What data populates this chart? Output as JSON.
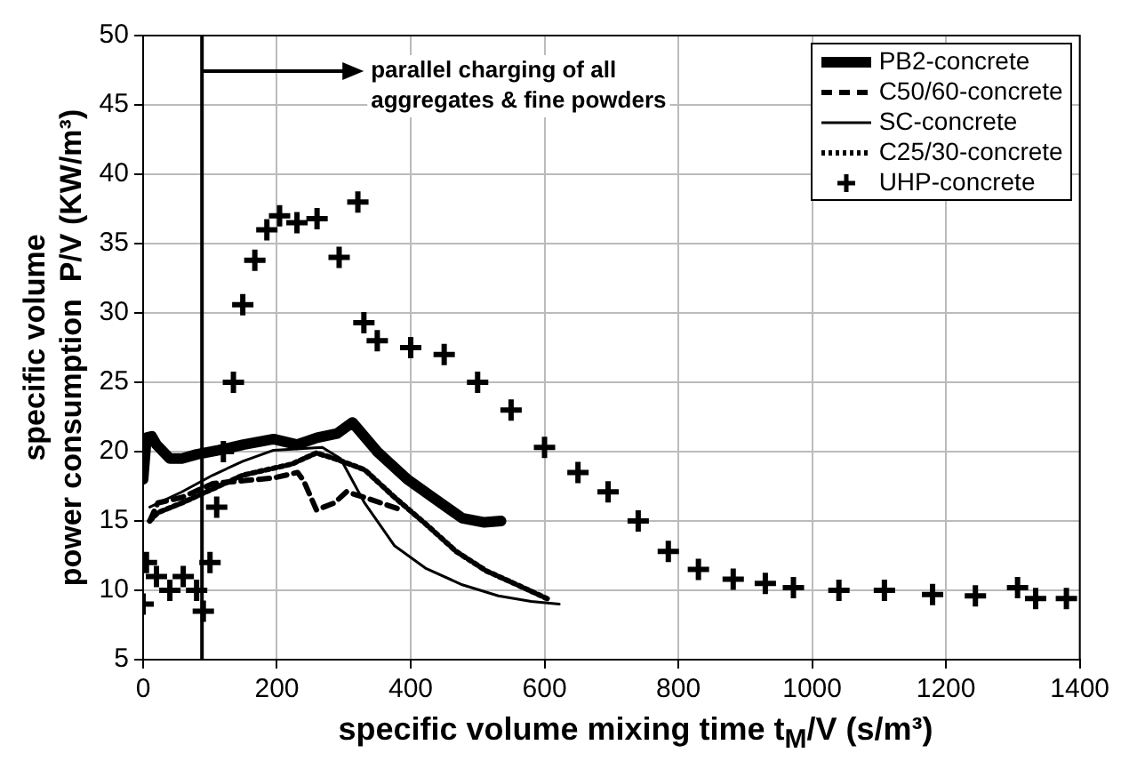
{
  "chart_data": {
    "type": "line",
    "xlabel": "specific volume mixing time t$_{M}$/V (s/m³)",
    "ylabel": "specific volume\npower consumption  P/V (KW/m³)",
    "xlim": [
      0,
      1400
    ],
    "xticks": [
      0,
      200,
      400,
      600,
      800,
      1000,
      1200,
      1400
    ],
    "ylim": [
      5,
      50
    ],
    "yticks": [
      5,
      10,
      15,
      20,
      25,
      30,
      35,
      40,
      45,
      50
    ],
    "grid": true,
    "legend": "top right",
    "ref_lines": [
      {
        "axis": "x",
        "value": 88,
        "label": "parallel charging of all aggregates & fine powders",
        "color": "#000000",
        "line_style": "solid"
      }
    ],
    "series": [
      {
        "name": "PB2-concrete",
        "color": "#000000",
        "line_style": "solid",
        "marker": "none",
        "x": [
          0,
          5,
          13,
          20,
          40,
          58,
          80,
          113,
          150,
          195,
          230,
          260,
          290,
          313,
          350,
          395,
          430,
          477,
          510,
          535
        ],
        "values": [
          18,
          21,
          21.1,
          20.5,
          19.5,
          19.5,
          19.8,
          20.1,
          20.5,
          20.9,
          20.5,
          21,
          21.3,
          22.1,
          20,
          18,
          16.8,
          15.2,
          14.9,
          15
        ]
      },
      {
        "name": "C50/60-concrete",
        "color": "#000000",
        "line_style": "dashed",
        "marker": "none",
        "x": [
          10,
          22,
          58,
          104,
          149,
          195,
          231,
          240,
          259,
          286,
          304,
          331,
          386
        ],
        "values": [
          15,
          16.3,
          16.7,
          17.7,
          17.9,
          18.1,
          18.5,
          17.9,
          15.8,
          16.3,
          17.1,
          16.7,
          15.8
        ]
      },
      {
        "name": "SC-concrete",
        "color": "#000000",
        "line_style": "solid",
        "marker": "none",
        "x": [
          10,
          58,
          104,
          149,
          195,
          268,
          295,
          331,
          376,
          422,
          477,
          531,
          580,
          622
        ],
        "values": [
          16,
          17.1,
          18.3,
          19.3,
          20.1,
          20.3,
          19.5,
          16.3,
          13.2,
          11.6,
          10.4,
          9.6,
          9.2,
          9
        ]
      },
      {
        "name": "C25/30-concrete",
        "color": "#000000",
        "line_style": "dotted",
        "marker": "none",
        "x": [
          10,
          22,
          58,
          149,
          222,
          259,
          286,
          331,
          376,
          422,
          468,
          513,
          559,
          604
        ],
        "values": [
          15,
          15.6,
          16.3,
          18.3,
          19.1,
          19.9,
          19.5,
          18.7,
          16.7,
          14.8,
          12.8,
          11.4,
          10.4,
          9.4
        ]
      },
      {
        "name": "UHP-concrete",
        "type": "scatter",
        "color": "#000000",
        "marker": "cross",
        "x": [
          0,
          5,
          20,
          40,
          60,
          80,
          90,
          100,
          110,
          120,
          135,
          149,
          167,
          185,
          204,
          230,
          260,
          293,
          321,
          330,
          350,
          400,
          450,
          500,
          550,
          600,
          650,
          695,
          740,
          785,
          830,
          882,
          930,
          972,
          1040,
          1108,
          1180,
          1244,
          1307,
          1334,
          1380
        ],
        "values": [
          9,
          12,
          11,
          10,
          11,
          10,
          8.5,
          12,
          16,
          20,
          25,
          30.6,
          33.8,
          36,
          37,
          36.5,
          36.8,
          34,
          38,
          29.3,
          28,
          27.5,
          27,
          25,
          23,
          20.3,
          18.5,
          17.1,
          15,
          12.8,
          11.5,
          10.8,
          10.5,
          10.2,
          10,
          10,
          9.7,
          9.6,
          10.2,
          9.4,
          9.4
        ]
      }
    ]
  }
}
